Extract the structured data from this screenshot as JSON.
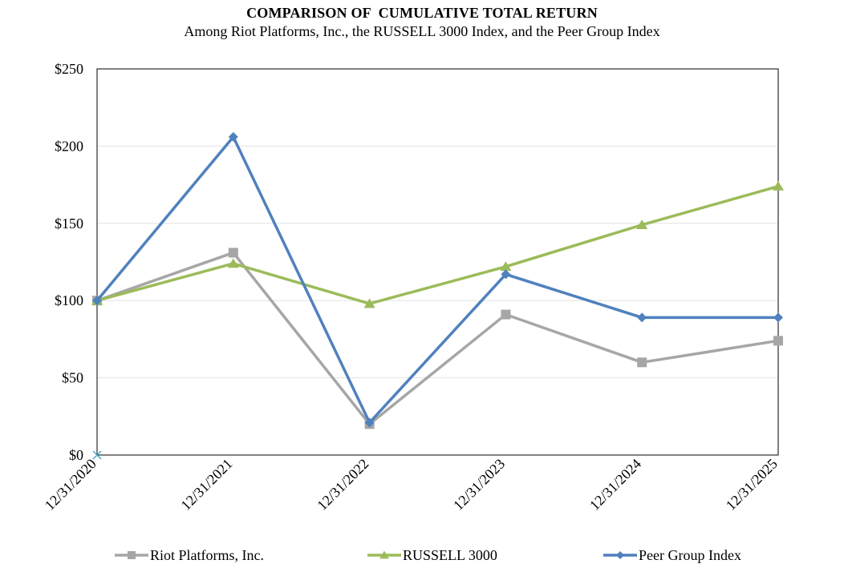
{
  "chart_data": {
    "type": "line",
    "title": "COMPARISON OF  CUMULATIVE TOTAL RETURN",
    "subtitle": "Among Riot Platforms, Inc., the RUSSELL 3000 Index, and the Peer Group Index",
    "categories": [
      "12/31/2020",
      "12/31/2021",
      "12/31/2022",
      "12/31/2023",
      "12/31/2024",
      "12/31/2025"
    ],
    "ylim": [
      0,
      250
    ],
    "yticks": [
      0,
      50,
      100,
      150,
      200,
      250
    ],
    "ytick_labels": [
      "$0",
      "$50",
      "$100",
      "$150",
      "$200",
      "$250"
    ],
    "grid": true,
    "legend_position": "bottom",
    "series": [
      {
        "name": "Riot Platforms, Inc.",
        "color": "#a6a6a6",
        "marker": "square",
        "values": [
          100,
          131,
          20,
          91,
          60,
          74
        ]
      },
      {
        "name": "RUSSELL 3000",
        "color": "#9bbb59",
        "marker": "triangle",
        "values": [
          100,
          124,
          98,
          122,
          149,
          174
        ]
      },
      {
        "name": "Peer Group Index",
        "color": "#4f81bd",
        "marker": "diamond",
        "values": [
          100,
          206,
          21,
          117,
          89,
          89
        ]
      }
    ]
  }
}
